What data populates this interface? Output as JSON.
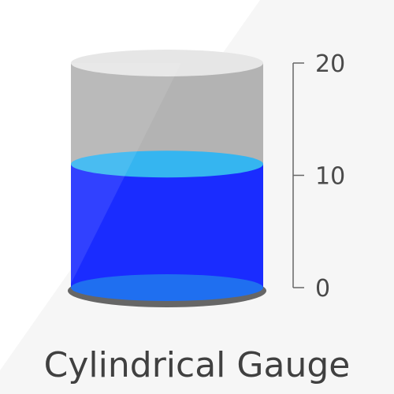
{
  "chart_data": {
    "type": "cylindrical-gauge",
    "title": "Cylindrical Gauge",
    "value": 11,
    "min": 0,
    "max": 20,
    "ticks": [
      0,
      10,
      20
    ],
    "colors": {
      "fill": "#1a2cff",
      "fill_top": "#35b5f0",
      "fill_bottom": "#1f6ff0",
      "empty": "#b3b3b3",
      "lid": "#e6e6e6",
      "axis": "#666666",
      "base_rim": "#666666"
    }
  }
}
